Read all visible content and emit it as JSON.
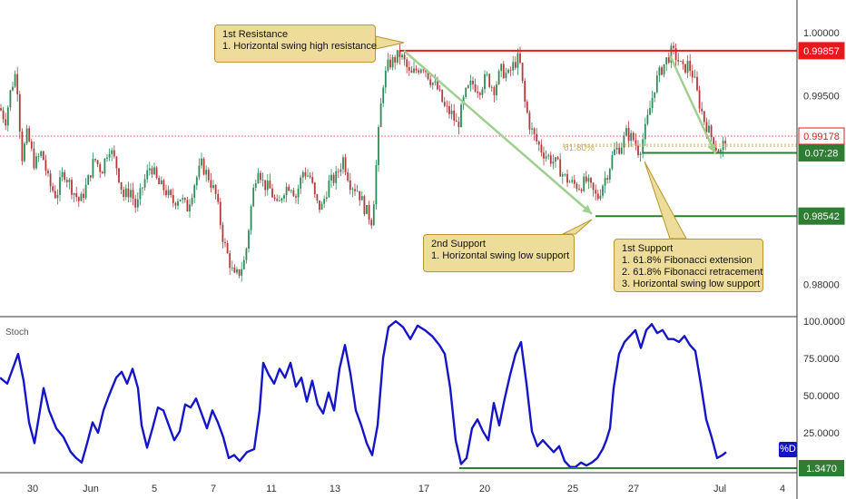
{
  "chart_data": [
    {
      "type": "candlestick",
      "title": "",
      "x_labels": [
        "30",
        "Jun",
        "5",
        "7",
        "11",
        "13",
        "17",
        "20",
        "25",
        "27",
        "Jul",
        "4"
      ],
      "y_ticks": [
        "1.00000",
        "0.99500",
        "0.98000"
      ],
      "ylim": [
        0.9775,
        1.0026
      ],
      "grid": false,
      "price_path": [
        [
          0,
          0.994
        ],
        [
          6,
          0.993
        ],
        [
          12,
          0.9955
        ],
        [
          18,
          0.997
        ],
        [
          24,
          0.99
        ],
        [
          30,
          0.992
        ],
        [
          38,
          0.9895
        ],
        [
          46,
          0.9905
        ],
        [
          54,
          0.988
        ],
        [
          62,
          0.987
        ],
        [
          70,
          0.989
        ],
        [
          80,
          0.9875
        ],
        [
          88,
          0.9865
        ],
        [
          96,
          0.988
        ],
        [
          104,
          0.99
        ],
        [
          112,
          0.989
        ],
        [
          120,
          0.991
        ],
        [
          128,
          0.9895
        ],
        [
          136,
          0.987
        ],
        [
          144,
          0.9875
        ],
        [
          150,
          0.986
        ],
        [
          158,
          0.988
        ],
        [
          166,
          0.9895
        ],
        [
          174,
          0.988
        ],
        [
          182,
          0.9875
        ],
        [
          190,
          0.9865
        ],
        [
          198,
          0.987
        ],
        [
          206,
          0.986
        ],
        [
          214,
          0.988
        ],
        [
          222,
          0.9895
        ],
        [
          230,
          0.9885
        ],
        [
          238,
          0.987
        ],
        [
          246,
          0.9835
        ],
        [
          252,
          0.982
        ],
        [
          258,
          0.9805
        ],
        [
          264,
          0.981
        ],
        [
          270,
          0.982
        ],
        [
          278,
          0.987
        ],
        [
          284,
          0.9895
        ],
        [
          290,
          0.988
        ],
        [
          298,
          0.9875
        ],
        [
          306,
          0.986
        ],
        [
          312,
          0.9875
        ],
        [
          320,
          0.988
        ],
        [
          326,
          0.987
        ],
        [
          334,
          0.989
        ],
        [
          342,
          0.9885
        ],
        [
          348,
          0.9865
        ],
        [
          354,
          0.986
        ],
        [
          362,
          0.988
        ],
        [
          370,
          0.9885
        ],
        [
          378,
          0.99
        ],
        [
          386,
          0.988
        ],
        [
          394,
          0.9875
        ],
        [
          402,
          0.986
        ],
        [
          410,
          0.985
        ],
        [
          414,
          0.989
        ],
        [
          418,
          0.993
        ],
        [
          422,
          0.996
        ],
        [
          428,
          0.9975
        ],
        [
          434,
          0.9978
        ],
        [
          440,
          0.9983
        ],
        [
          446,
          0.9976
        ],
        [
          452,
          0.9965
        ],
        [
          458,
          0.997
        ],
        [
          466,
          0.9975
        ],
        [
          474,
          0.9963
        ],
        [
          482,
          0.9955
        ],
        [
          490,
          0.994
        ],
        [
          498,
          0.9935
        ],
        [
          504,
          0.9925
        ],
        [
          512,
          0.995
        ],
        [
          520,
          0.996
        ],
        [
          528,
          0.9955
        ],
        [
          536,
          0.9965
        ],
        [
          544,
          0.9955
        ],
        [
          552,
          0.997
        ],
        [
          560,
          0.9966
        ],
        [
          566,
          0.9975
        ],
        [
          572,
          0.998
        ],
        [
          578,
          0.9945
        ],
        [
          584,
          0.9925
        ],
        [
          590,
          0.9915
        ],
        [
          598,
          0.9905
        ],
        [
          606,
          0.99
        ],
        [
          614,
          0.9895
        ],
        [
          622,
          0.9885
        ],
        [
          630,
          0.988
        ],
        [
          638,
          0.9878
        ],
        [
          646,
          0.9882
        ],
        [
          652,
          0.9875
        ],
        [
          658,
          0.9868
        ],
        [
          664,
          0.988
        ],
        [
          670,
          0.989
        ],
        [
          676,
          0.9905
        ],
        [
          684,
          0.991
        ],
        [
          690,
          0.992
        ],
        [
          698,
          0.9915
        ],
        [
          704,
          0.9905
        ],
        [
          710,
          0.992
        ],
        [
          716,
          0.994
        ],
        [
          722,
          0.996
        ],
        [
          728,
          0.997
        ],
        [
          734,
          0.9978
        ],
        [
          740,
          0.9985
        ],
        [
          746,
          0.998
        ],
        [
          752,
          0.997
        ],
        [
          758,
          0.9975
        ],
        [
          764,
          0.9965
        ],
        [
          770,
          0.9945
        ],
        [
          776,
          0.993
        ],
        [
          782,
          0.992
        ],
        [
          788,
          0.991
        ],
        [
          794,
          0.9905
        ],
        [
          800,
          0.9918
        ]
      ],
      "horizontal_levels": [
        {
          "label": "0.99857",
          "value": 0.99857,
          "color": "#e8181c",
          "tag_color": "#e8181c",
          "x_start": 440
        },
        {
          "label": "0.99178",
          "value": 0.99178,
          "color": "#e8181c",
          "tag_color": "#ffffff",
          "x_start": 0,
          "style": "dotted"
        },
        {
          "label": "07:28",
          "value": 0.99045,
          "color": "#2e7d32",
          "tag_color": "#2e7d32",
          "x_start": 708,
          "prefix": "0."
        },
        {
          "label": "0.98542",
          "value": 0.98542,
          "color": "#2e7d32",
          "tag_color": "#2e7d32",
          "x_start": 656
        }
      ],
      "fibonacci_label": "61.80%",
      "fibonacci_value": 0.99112,
      "trend_arrows": [
        {
          "from": [
            445,
            0.99857
          ],
          "to": [
            652,
            0.9856
          ]
        },
        {
          "from": [
            738,
            0.9982
          ],
          "to": [
            788,
            0.9904
          ]
        }
      ],
      "annotations": [
        {
          "title": "1st Resistance",
          "lines": [
            "1. Horizontal swing high resistance"
          ]
        },
        {
          "title": "2nd Support",
          "lines": [
            "1. Horizontal swing low support"
          ]
        },
        {
          "title": "1st Support",
          "lines": [
            "1. 61.8% Fibonacci extension",
            "2. 61.8% Fibonacci retracement",
            "3. Horizontal swing low support"
          ]
        }
      ]
    },
    {
      "type": "line",
      "title": "Stoch",
      "series": [
        {
          "name": "%D",
          "color": "#1515c8",
          "values": [
            [
              0,
              62
            ],
            [
              8,
              58
            ],
            [
              14,
              68
            ],
            [
              20,
              78
            ],
            [
              26,
              60
            ],
            [
              32,
              32
            ],
            [
              38,
              18
            ],
            [
              44,
              40
            ],
            [
              48,
              55
            ],
            [
              54,
              40
            ],
            [
              62,
              28
            ],
            [
              70,
              22
            ],
            [
              78,
              12
            ],
            [
              84,
              8
            ],
            [
              90,
              5
            ],
            [
              96,
              18
            ],
            [
              102,
              32
            ],
            [
              108,
              25
            ],
            [
              114,
              40
            ],
            [
              120,
              50
            ],
            [
              128,
              62
            ],
            [
              134,
              66
            ],
            [
              140,
              58
            ],
            [
              146,
              68
            ],
            [
              152,
              55
            ],
            [
              156,
              30
            ],
            [
              162,
              15
            ],
            [
              168,
              28
            ],
            [
              174,
              42
            ],
            [
              180,
              40
            ],
            [
              186,
              30
            ],
            [
              192,
              20
            ],
            [
              198,
              26
            ],
            [
              204,
              44
            ],
            [
              210,
              42
            ],
            [
              216,
              48
            ],
            [
              222,
              38
            ],
            [
              228,
              28
            ],
            [
              234,
              40
            ],
            [
              240,
              32
            ],
            [
              246,
              22
            ],
            [
              252,
              8
            ],
            [
              258,
              10
            ],
            [
              264,
              6
            ],
            [
              272,
              12
            ],
            [
              280,
              14
            ],
            [
              286,
              40
            ],
            [
              290,
              72
            ],
            [
              296,
              64
            ],
            [
              302,
              58
            ],
            [
              308,
              68
            ],
            [
              314,
              62
            ],
            [
              320,
              72
            ],
            [
              326,
              56
            ],
            [
              332,
              62
            ],
            [
              338,
              46
            ],
            [
              344,
              60
            ],
            [
              350,
              44
            ],
            [
              356,
              38
            ],
            [
              362,
              52
            ],
            [
              368,
              40
            ],
            [
              374,
              68
            ],
            [
              380,
              84
            ],
            [
              386,
              65
            ],
            [
              392,
              40
            ],
            [
              398,
              30
            ],
            [
              404,
              18
            ],
            [
              410,
              10
            ],
            [
              416,
              30
            ],
            [
              422,
              75
            ],
            [
              428,
              96
            ],
            [
              436,
              100
            ],
            [
              444,
              96
            ],
            [
              452,
              88
            ],
            [
              460,
              97
            ],
            [
              468,
              94
            ],
            [
              476,
              90
            ],
            [
              484,
              84
            ],
            [
              490,
              78
            ],
            [
              496,
              55
            ],
            [
              502,
              20
            ],
            [
              508,
              4
            ],
            [
              514,
              8
            ],
            [
              520,
              28
            ],
            [
              526,
              34
            ],
            [
              532,
              26
            ],
            [
              538,
              20
            ],
            [
              544,
              45
            ],
            [
              550,
              30
            ],
            [
              556,
              48
            ],
            [
              562,
              64
            ],
            [
              568,
              78
            ],
            [
              574,
              86
            ],
            [
              580,
              58
            ],
            [
              586,
              26
            ],
            [
              592,
              16
            ],
            [
              598,
              20
            ],
            [
              604,
              16
            ],
            [
              610,
              12
            ],
            [
              616,
              16
            ],
            [
              622,
              6
            ],
            [
              628,
              2
            ],
            [
              634,
              2
            ],
            [
              640,
              5
            ],
            [
              646,
              3
            ],
            [
              652,
              5
            ],
            [
              658,
              8
            ],
            [
              664,
              14
            ],
            [
              668,
              20
            ],
            [
              672,
              28
            ],
            [
              676,
              55
            ],
            [
              682,
              78
            ],
            [
              688,
              86
            ],
            [
              694,
              90
            ],
            [
              700,
              94
            ],
            [
              706,
              82
            ],
            [
              712,
              94
            ],
            [
              718,
              98
            ],
            [
              724,
              92
            ],
            [
              730,
              94
            ],
            [
              736,
              88
            ],
            [
              742,
              88
            ],
            [
              748,
              86
            ],
            [
              754,
              90
            ],
            [
              760,
              84
            ],
            [
              766,
              80
            ],
            [
              772,
              58
            ],
            [
              778,
              34
            ],
            [
              784,
              22
            ],
            [
              790,
              8
            ],
            [
              796,
              10
            ],
            [
              800,
              12
            ]
          ]
        }
      ],
      "y_ticks": [
        "100.0000",
        "75.0000",
        "50.0000",
        "25.0000"
      ],
      "ylim": [
        0,
        100
      ],
      "level": {
        "label": "1.3470",
        "value": 1.347,
        "color": "#2e7d32",
        "x_start": 506
      }
    }
  ]
}
